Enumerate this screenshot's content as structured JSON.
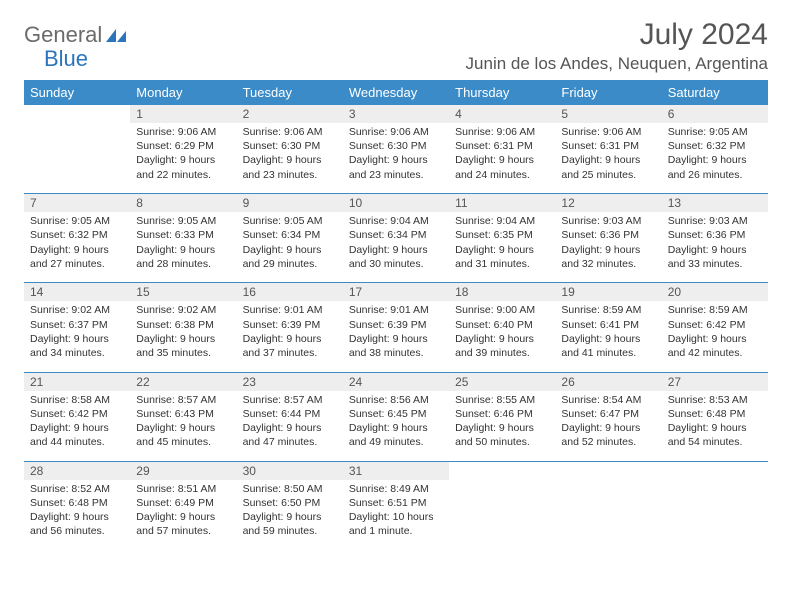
{
  "logo": {
    "text1": "General",
    "text2": "Blue"
  },
  "title": "July 2024",
  "location": "Junin de los Andes, Neuquen, Argentina",
  "colors": {
    "header_bg": "#3b8bc9",
    "header_text": "#ffffff",
    "daynum_bg": "#eeeeee",
    "text": "#333333",
    "logo_gray": "#6b6b6b",
    "logo_blue": "#2a75bb"
  },
  "day_headers": [
    "Sunday",
    "Monday",
    "Tuesday",
    "Wednesday",
    "Thursday",
    "Friday",
    "Saturday"
  ],
  "weeks": [
    {
      "nums": [
        "",
        "1",
        "2",
        "3",
        "4",
        "5",
        "6"
      ],
      "cells": [
        null,
        {
          "sunrise": "9:06 AM",
          "sunset": "6:29 PM",
          "daylight": "9 hours and 22 minutes."
        },
        {
          "sunrise": "9:06 AM",
          "sunset": "6:30 PM",
          "daylight": "9 hours and 23 minutes."
        },
        {
          "sunrise": "9:06 AM",
          "sunset": "6:30 PM",
          "daylight": "9 hours and 23 minutes."
        },
        {
          "sunrise": "9:06 AM",
          "sunset": "6:31 PM",
          "daylight": "9 hours and 24 minutes."
        },
        {
          "sunrise": "9:06 AM",
          "sunset": "6:31 PM",
          "daylight": "9 hours and 25 minutes."
        },
        {
          "sunrise": "9:05 AM",
          "sunset": "6:32 PM",
          "daylight": "9 hours and 26 minutes."
        }
      ]
    },
    {
      "nums": [
        "7",
        "8",
        "9",
        "10",
        "11",
        "12",
        "13"
      ],
      "cells": [
        {
          "sunrise": "9:05 AM",
          "sunset": "6:32 PM",
          "daylight": "9 hours and 27 minutes."
        },
        {
          "sunrise": "9:05 AM",
          "sunset": "6:33 PM",
          "daylight": "9 hours and 28 minutes."
        },
        {
          "sunrise": "9:05 AM",
          "sunset": "6:34 PM",
          "daylight": "9 hours and 29 minutes."
        },
        {
          "sunrise": "9:04 AM",
          "sunset": "6:34 PM",
          "daylight": "9 hours and 30 minutes."
        },
        {
          "sunrise": "9:04 AM",
          "sunset": "6:35 PM",
          "daylight": "9 hours and 31 minutes."
        },
        {
          "sunrise": "9:03 AM",
          "sunset": "6:36 PM",
          "daylight": "9 hours and 32 minutes."
        },
        {
          "sunrise": "9:03 AM",
          "sunset": "6:36 PM",
          "daylight": "9 hours and 33 minutes."
        }
      ]
    },
    {
      "nums": [
        "14",
        "15",
        "16",
        "17",
        "18",
        "19",
        "20"
      ],
      "cells": [
        {
          "sunrise": "9:02 AM",
          "sunset": "6:37 PM",
          "daylight": "9 hours and 34 minutes."
        },
        {
          "sunrise": "9:02 AM",
          "sunset": "6:38 PM",
          "daylight": "9 hours and 35 minutes."
        },
        {
          "sunrise": "9:01 AM",
          "sunset": "6:39 PM",
          "daylight": "9 hours and 37 minutes."
        },
        {
          "sunrise": "9:01 AM",
          "sunset": "6:39 PM",
          "daylight": "9 hours and 38 minutes."
        },
        {
          "sunrise": "9:00 AM",
          "sunset": "6:40 PM",
          "daylight": "9 hours and 39 minutes."
        },
        {
          "sunrise": "8:59 AM",
          "sunset": "6:41 PM",
          "daylight": "9 hours and 41 minutes."
        },
        {
          "sunrise": "8:59 AM",
          "sunset": "6:42 PM",
          "daylight": "9 hours and 42 minutes."
        }
      ]
    },
    {
      "nums": [
        "21",
        "22",
        "23",
        "24",
        "25",
        "26",
        "27"
      ],
      "cells": [
        {
          "sunrise": "8:58 AM",
          "sunset": "6:42 PM",
          "daylight": "9 hours and 44 minutes."
        },
        {
          "sunrise": "8:57 AM",
          "sunset": "6:43 PM",
          "daylight": "9 hours and 45 minutes."
        },
        {
          "sunrise": "8:57 AM",
          "sunset": "6:44 PM",
          "daylight": "9 hours and 47 minutes."
        },
        {
          "sunrise": "8:56 AM",
          "sunset": "6:45 PM",
          "daylight": "9 hours and 49 minutes."
        },
        {
          "sunrise": "8:55 AM",
          "sunset": "6:46 PM",
          "daylight": "9 hours and 50 minutes."
        },
        {
          "sunrise": "8:54 AM",
          "sunset": "6:47 PM",
          "daylight": "9 hours and 52 minutes."
        },
        {
          "sunrise": "8:53 AM",
          "sunset": "6:48 PM",
          "daylight": "9 hours and 54 minutes."
        }
      ]
    },
    {
      "nums": [
        "28",
        "29",
        "30",
        "31",
        "",
        "",
        ""
      ],
      "cells": [
        {
          "sunrise": "8:52 AM",
          "sunset": "6:48 PM",
          "daylight": "9 hours and 56 minutes."
        },
        {
          "sunrise": "8:51 AM",
          "sunset": "6:49 PM",
          "daylight": "9 hours and 57 minutes."
        },
        {
          "sunrise": "8:50 AM",
          "sunset": "6:50 PM",
          "daylight": "9 hours and 59 minutes."
        },
        {
          "sunrise": "8:49 AM",
          "sunset": "6:51 PM",
          "daylight": "10 hours and 1 minute."
        },
        null,
        null,
        null
      ]
    }
  ],
  "labels": {
    "sunrise": "Sunrise:",
    "sunset": "Sunset:",
    "daylight": "Daylight:"
  }
}
